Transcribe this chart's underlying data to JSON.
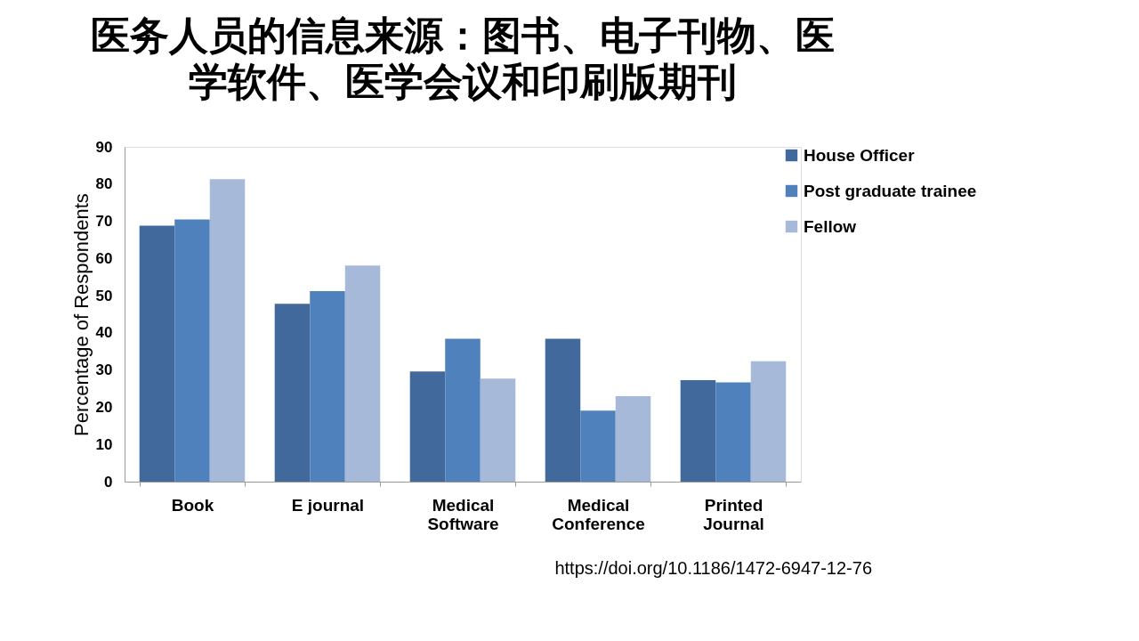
{
  "chart_data": {
    "type": "bar",
    "title": "医务人员的信息来源：图书、电子刊物、医学软件、医学会议和印刷版期刊",
    "ylabel": "Percentage of Respondents",
    "categories": [
      "Book",
      "E journal",
      "Medical Software",
      "Medical Conference",
      "Printed Journal"
    ],
    "series": [
      {
        "name": "House Officer",
        "color": "#41699c",
        "values": [
          68.8,
          47.8,
          29.6,
          38.4,
          27.3
        ]
      },
      {
        "name": "Post graduate trainee",
        "color": "#4f81bd",
        "values": [
          70.5,
          51.2,
          38.4,
          19.1,
          26.7
        ]
      },
      {
        "name": "Fellow",
        "color": "#a7b9d8",
        "values": [
          81.3,
          58.1,
          27.7,
          23.0,
          32.4
        ]
      }
    ],
    "ylim": [
      0,
      90
    ],
    "yticks": [
      0,
      10,
      20,
      30,
      40,
      50,
      60,
      70,
      80,
      90
    ],
    "grid": false,
    "legend": "top right",
    "annotations": [
      "https://doi.org/10.1186/1472-6947-12-76"
    ]
  }
}
